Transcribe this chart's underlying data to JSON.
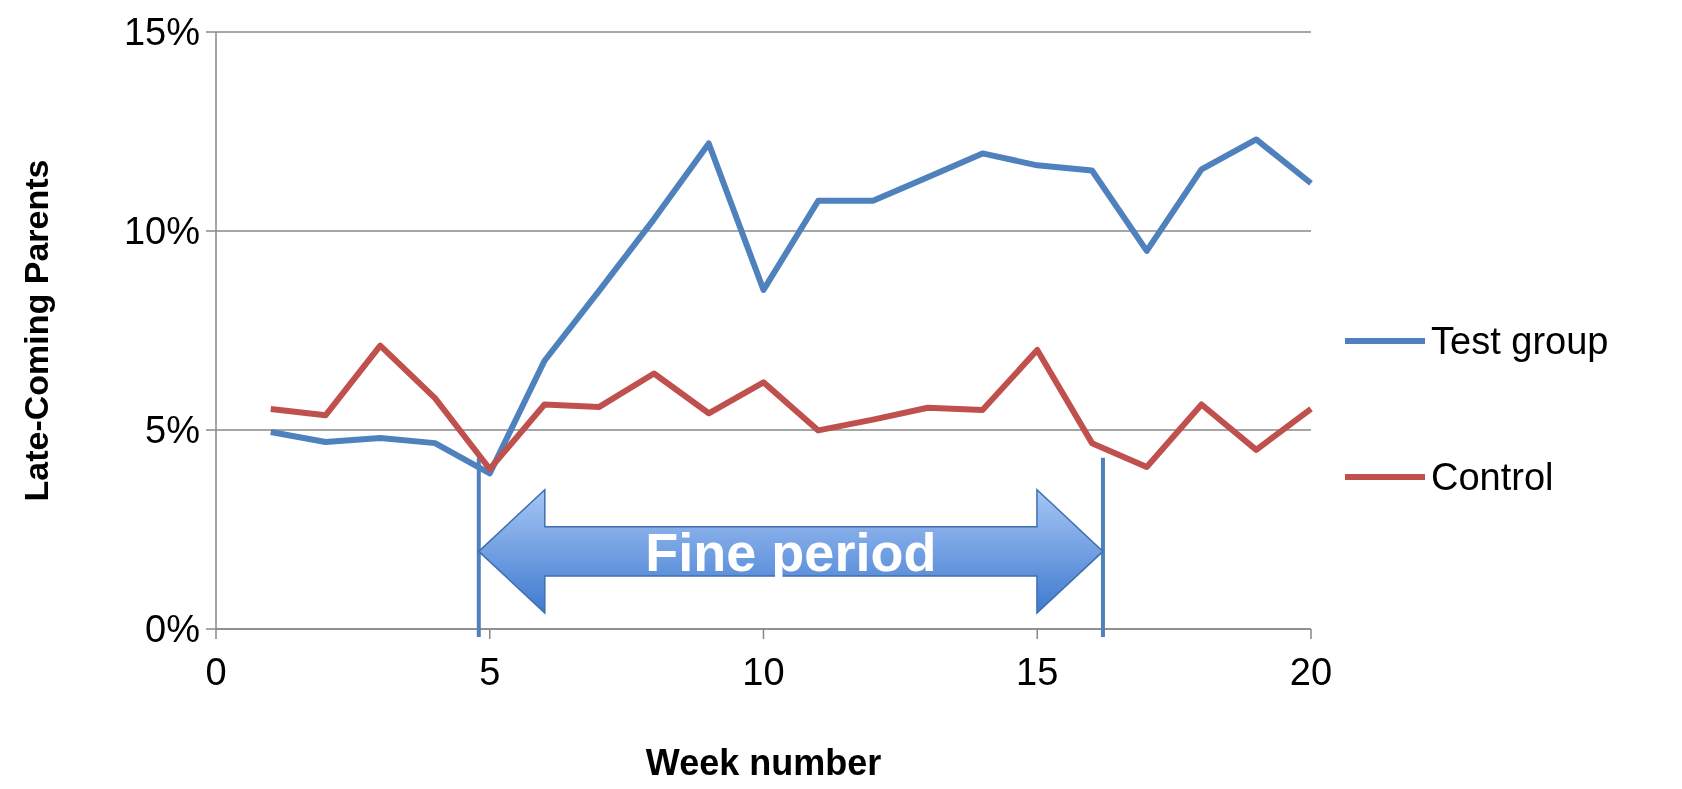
{
  "chart_data": {
    "type": "line",
    "xlabel": "Week number",
    "ylabel": "Late-Coming Parents",
    "x": [
      1,
      2,
      3,
      4,
      5,
      6,
      7,
      8,
      9,
      10,
      11,
      12,
      13,
      14,
      15,
      16,
      17,
      18,
      19,
      20
    ],
    "series": [
      {
        "name": "Test group",
        "color": "#4f81bd",
        "values": [
          4.95,
          4.7,
          4.8,
          4.67,
          3.91,
          6.74,
          8.5,
          10.3,
          12.2,
          8.52,
          10.76,
          10.76,
          11.35,
          11.95,
          11.65,
          11.52,
          9.5,
          11.55,
          12.3,
          11.2
        ]
      },
      {
        "name": "Control",
        "color": "#c0504d",
        "values": [
          5.53,
          5.37,
          7.12,
          5.8,
          4.02,
          5.64,
          5.58,
          6.42,
          5.42,
          6.2,
          4.99,
          5.26,
          5.56,
          5.5,
          7.01,
          4.67,
          4.07,
          5.64,
          4.5,
          5.53
        ]
      }
    ],
    "xlim": [
      0,
      20
    ],
    "xticks": [
      0,
      5,
      10,
      15,
      20
    ],
    "ylim": [
      0,
      15
    ],
    "yticks": [
      {
        "value": 0,
        "label": "0%"
      },
      {
        "value": 5,
        "label": "5%"
      },
      {
        "value": 10,
        "label": "10%"
      },
      {
        "value": 15,
        "label": "15%"
      }
    ],
    "grid": "y",
    "legend": "right",
    "marker": "none",
    "line_style": "solid",
    "ref_lines": [
      {
        "axis": "x",
        "value": 4.8,
        "color": "#4f81bd"
      },
      {
        "axis": "x",
        "value": 16.2,
        "color": "#4f81bd"
      }
    ],
    "annotations": [
      "Fine period"
    ]
  }
}
